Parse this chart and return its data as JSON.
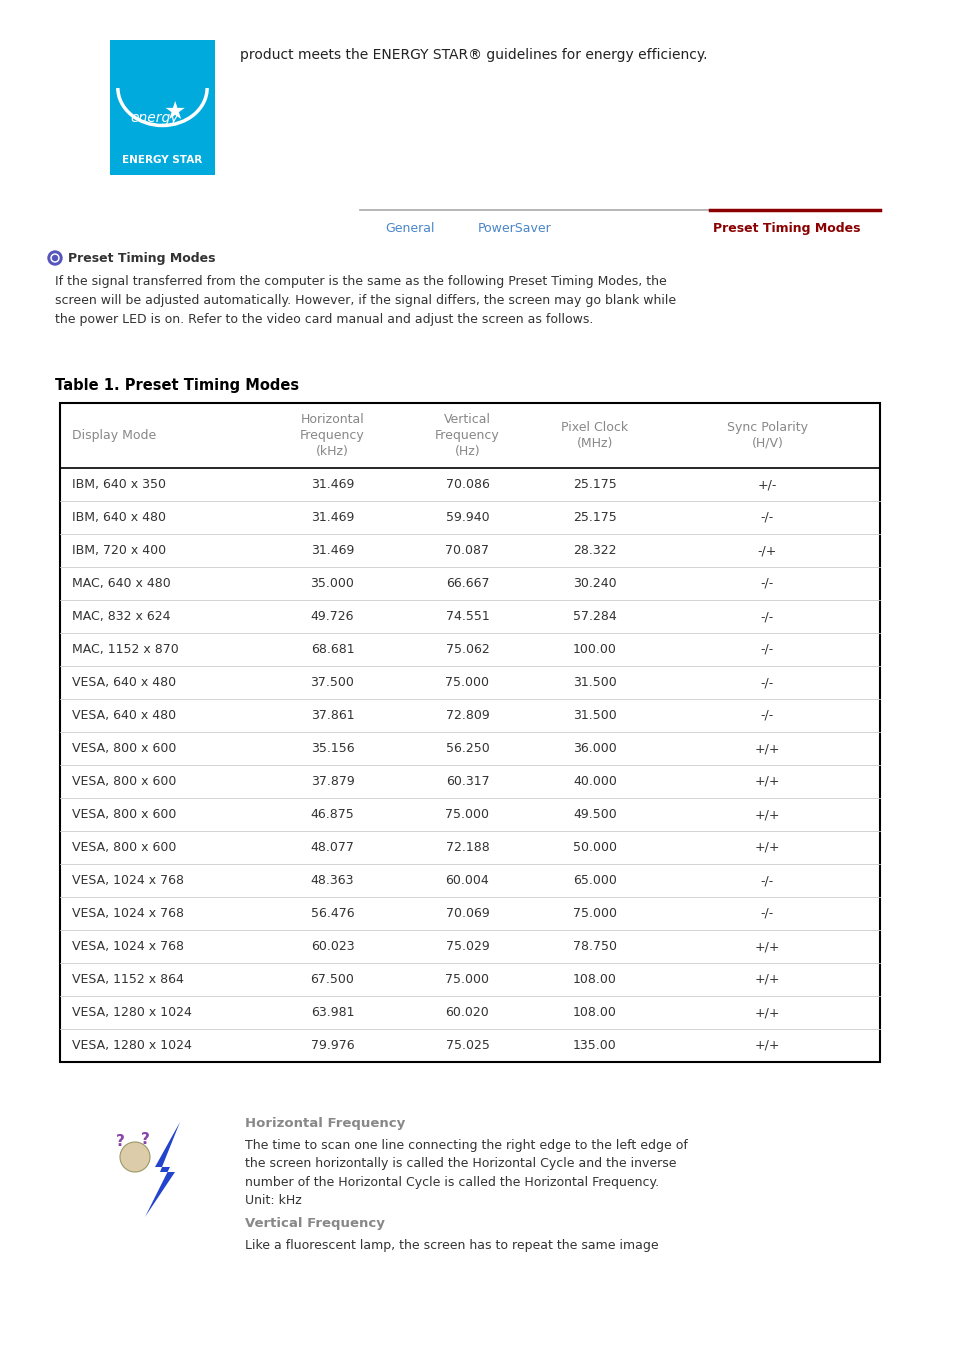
{
  "page_bg": "#ffffff",
  "energy_star_text": "product meets the ENERGY STAR® guidelines for energy efficiency.",
  "nav_items": [
    "General",
    "PowerSaver",
    "Preset Timing Modes"
  ],
  "nav_colors": [
    "#4a86c8",
    "#4a86c8",
    "#8b0000"
  ],
  "section_bullet_color": "#5555bb",
  "section_title": "Preset Timing Modes",
  "intro_text": "If the signal transferred from the computer is the same as the following Preset Timing Modes, the\nscreen will be adjusted automatically. However, if the signal differs, the screen may go blank while\nthe power LED is on. Refer to the video card manual and adjust the screen as follows.",
  "table_title": "Table 1. Preset Timing Modes",
  "col_headers": [
    "Display Mode",
    "Horizontal\nFrequency\n(kHz)",
    "Vertical\nFrequency\n(Hz)",
    "Pixel Clock\n(MHz)",
    "Sync Polarity\n(H/V)"
  ],
  "rows": [
    [
      "IBM, 640 x 350",
      "31.469",
      "70.086",
      "25.175",
      "+/-"
    ],
    [
      "IBM, 640 x 480",
      "31.469",
      "59.940",
      "25.175",
      "-/-"
    ],
    [
      "IBM, 720 x 400",
      "31.469",
      "70.087",
      "28.322",
      "-/+"
    ],
    [
      "MAC, 640 x 480",
      "35.000",
      "66.667",
      "30.240",
      "-/-"
    ],
    [
      "MAC, 832 x 624",
      "49.726",
      "74.551",
      "57.284",
      "-/-"
    ],
    [
      "MAC, 1152 x 870",
      "68.681",
      "75.062",
      "100.00",
      "-/-"
    ],
    [
      "VESA, 640 x 480",
      "37.500",
      "75.000",
      "31.500",
      "-/-"
    ],
    [
      "VESA, 640 x 480",
      "37.861",
      "72.809",
      "31.500",
      "-/-"
    ],
    [
      "VESA, 800 x 600",
      "35.156",
      "56.250",
      "36.000",
      "+/+"
    ],
    [
      "VESA, 800 x 600",
      "37.879",
      "60.317",
      "40.000",
      "+/+"
    ],
    [
      "VESA, 800 x 600",
      "46.875",
      "75.000",
      "49.500",
      "+/+"
    ],
    [
      "VESA, 800 x 600",
      "48.077",
      "72.188",
      "50.000",
      "+/+"
    ],
    [
      "VESA, 1024 x 768",
      "48.363",
      "60.004",
      "65.000",
      "-/-"
    ],
    [
      "VESA, 1024 x 768",
      "56.476",
      "70.069",
      "75.000",
      "-/-"
    ],
    [
      "VESA, 1024 x 768",
      "60.023",
      "75.029",
      "78.750",
      "+/+"
    ],
    [
      "VESA, 1152 x 864",
      "67.500",
      "75.000",
      "108.00",
      "+/+"
    ],
    [
      "VESA, 1280 x 1024",
      "63.981",
      "60.020",
      "108.00",
      "+/+"
    ],
    [
      "VESA, 1280 x 1024",
      "79.976",
      "75.025",
      "135.00",
      "+/+"
    ]
  ],
  "horiz_freq_title": "Horizontal Frequency",
  "horiz_freq_text": "The time to scan one line connecting the right edge to the left edge of\nthe screen horizontally is called the Horizontal Cycle and the inverse\nnumber of the Horizontal Cycle is called the Horizontal Frequency.\nUnit: kHz",
  "vert_freq_title": "Vertical Frequency",
  "vert_freq_text": "Like a fluorescent lamp, the screen has to repeat the same image",
  "subtitle_color": "#888888",
  "table_header_color": "#888888"
}
